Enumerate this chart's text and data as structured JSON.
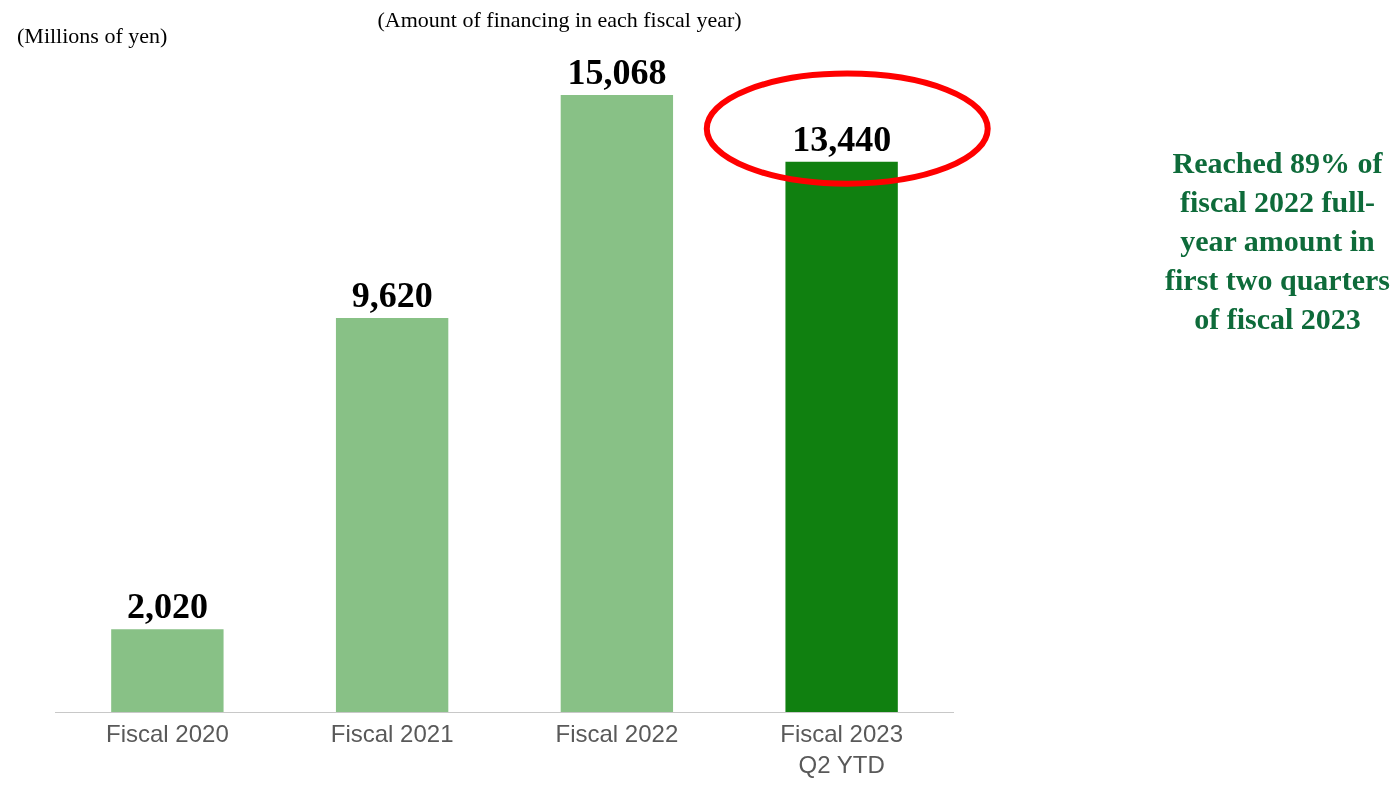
{
  "chart_data": {
    "type": "bar",
    "title": "(Amount of financing in each fiscal year)",
    "ylabel": "(Millions of yen)",
    "categories": [
      "Fiscal 2020",
      "Fiscal 2021",
      "Fiscal 2022",
      "Fiscal 2023 Q2 YTD"
    ],
    "values": [
      2020,
      9620,
      15068,
      13440
    ],
    "value_labels": [
      "2,020",
      "9,620",
      "15,068",
      "13,440"
    ],
    "colors": [
      "#88c186",
      "#88c186",
      "#88c186",
      "#108010"
    ],
    "tick_labels": "x",
    "annotations": [
      "Reached 89% of fiscal 2022 full-year amount in first two quarters of fiscal 2023"
    ]
  }
}
